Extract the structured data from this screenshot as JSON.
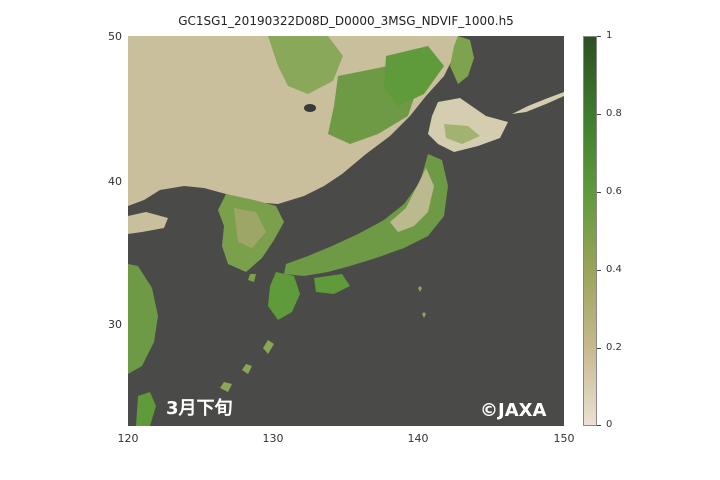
{
  "title": "GC1SG1_20190322D08D_D0000_3MSG_NDVIF_1000.h5",
  "y_ticks": [
    "50",
    "40",
    "30"
  ],
  "x_ticks": [
    "120",
    "130",
    "140",
    "150"
  ],
  "colorbar": {
    "ticks": [
      "1",
      "0.8",
      "0.6",
      "0.4",
      "0.2",
      "0"
    ],
    "colors": [
      "#eae1d3",
      "#c7b98f",
      "#9aa45a",
      "#5f9a3b",
      "#3e7c2d",
      "#2d4f22"
    ]
  },
  "labels": {
    "period": "3月下旬",
    "copyright": "©JAXA"
  },
  "colors": {
    "sea": "#4a4a48",
    "land_dry": "#c9bf9c",
    "land_green": "#6f9a45",
    "land_dense": "#4d8a33"
  }
}
